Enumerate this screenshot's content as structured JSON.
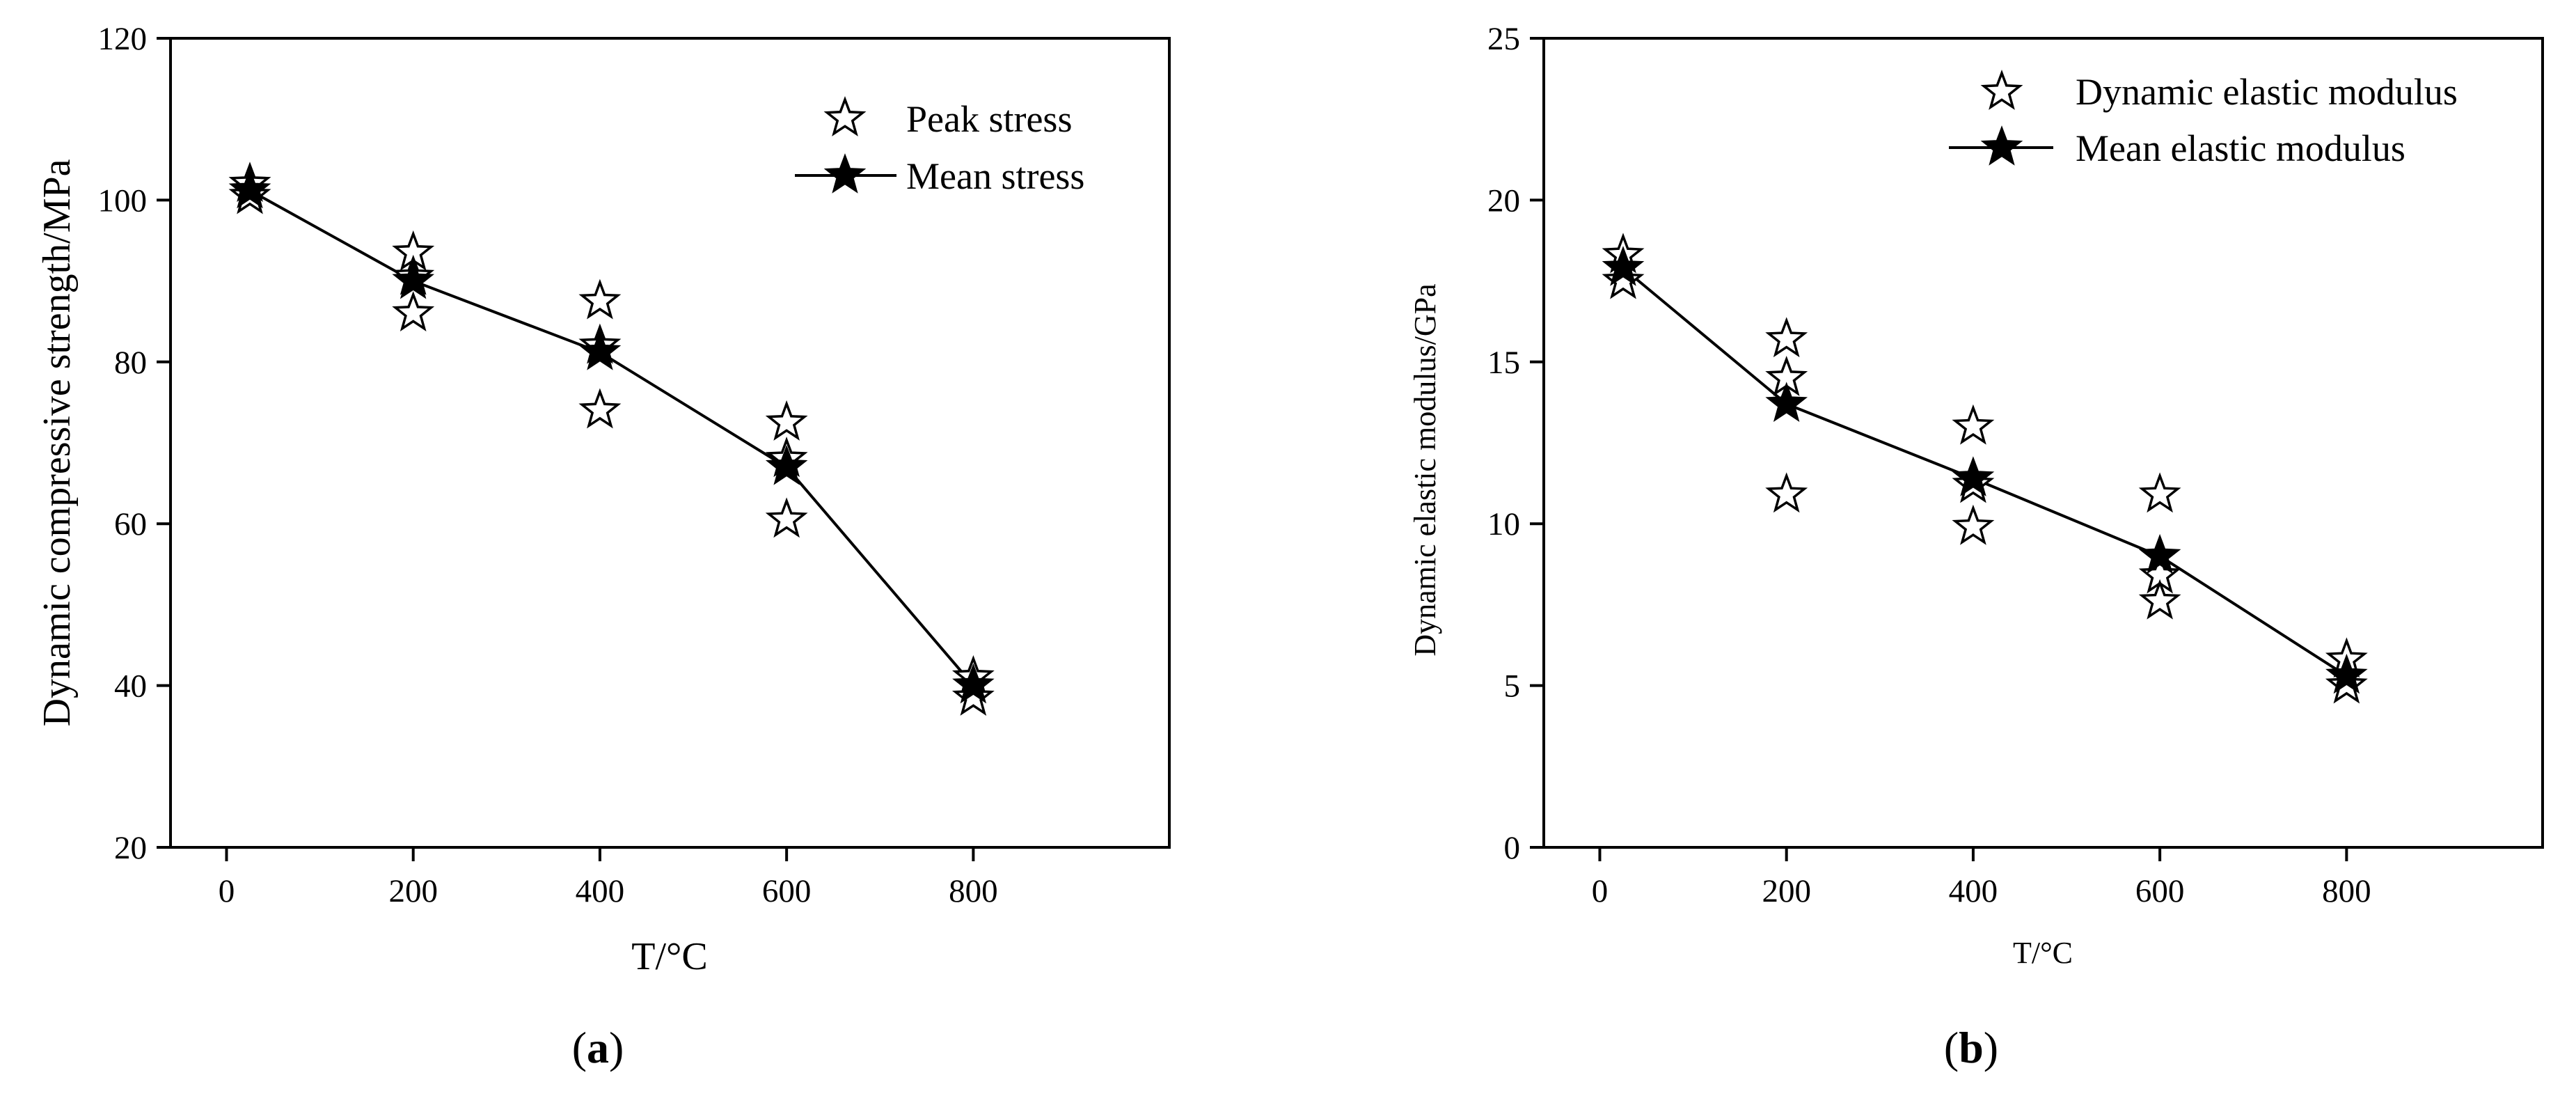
{
  "chart_data": [
    {
      "type": "scatter",
      "panel": "a",
      "caption_letter": "a",
      "xlabel": "T/°C",
      "ylabel": "Dynamic compressive strength/MPa",
      "xlim": [
        -60,
        1010
      ],
      "ylim": [
        20,
        120
      ],
      "xticks": [
        0,
        200,
        400,
        600,
        800
      ],
      "yticks": [
        20,
        40,
        60,
        80,
        100,
        120
      ],
      "legend_position": "top-right",
      "series": [
        {
          "name": "Peak stress",
          "marker": "open-star",
          "points": [
            {
              "x": 25,
              "y": 100.5
            },
            {
              "x": 25,
              "y": 102.0
            },
            {
              "x": 200,
              "y": 93.5
            },
            {
              "x": 200,
              "y": 90.5
            },
            {
              "x": 200,
              "y": 86.0
            },
            {
              "x": 400,
              "y": 87.5
            },
            {
              "x": 400,
              "y": 82.0
            },
            {
              "x": 400,
              "y": 74.0
            },
            {
              "x": 600,
              "y": 72.5
            },
            {
              "x": 600,
              "y": 68.0
            },
            {
              "x": 600,
              "y": 60.5
            },
            {
              "x": 800,
              "y": 41.0
            },
            {
              "x": 800,
              "y": 38.5
            }
          ]
        },
        {
          "name": "Mean stress",
          "marker": "filled-star-line",
          "points": [
            {
              "x": 25,
              "y": 101.2
            },
            {
              "x": 200,
              "y": 90.0
            },
            {
              "x": 400,
              "y": 81.2
            },
            {
              "x": 600,
              "y": 67.0
            },
            {
              "x": 800,
              "y": 40.0
            }
          ]
        }
      ]
    },
    {
      "type": "scatter",
      "panel": "b",
      "caption_letter": "b",
      "xlabel": "T/°C",
      "ylabel": "Dynamic elastic modulus/GPa",
      "xlim": [
        -60,
        1010
      ],
      "ylim": [
        0,
        25
      ],
      "xticks": [
        0,
        200,
        400,
        600,
        800
      ],
      "yticks": [
        0,
        5,
        10,
        15,
        20,
        25
      ],
      "legend_position": "top-right",
      "series": [
        {
          "name": "Dynamic elastic modulus",
          "marker": "open-star",
          "points": [
            {
              "x": 25,
              "y": 18.3
            },
            {
              "x": 25,
              "y": 17.5
            },
            {
              "x": 200,
              "y": 15.7
            },
            {
              "x": 200,
              "y": 14.5
            },
            {
              "x": 200,
              "y": 10.9
            },
            {
              "x": 400,
              "y": 13.0
            },
            {
              "x": 400,
              "y": 11.2
            },
            {
              "x": 400,
              "y": 9.9
            },
            {
              "x": 600,
              "y": 10.9
            },
            {
              "x": 600,
              "y": 8.4
            },
            {
              "x": 600,
              "y": 7.6
            },
            {
              "x": 800,
              "y": 5.8
            },
            {
              "x": 800,
              "y": 5.0
            }
          ]
        },
        {
          "name": "Mean elastic modulus",
          "marker": "filled-star-line",
          "points": [
            {
              "x": 25,
              "y": 17.9
            },
            {
              "x": 200,
              "y": 13.7
            },
            {
              "x": 400,
              "y": 11.4
            },
            {
              "x": 600,
              "y": 9.0
            },
            {
              "x": 800,
              "y": 5.3
            }
          ]
        }
      ]
    }
  ]
}
